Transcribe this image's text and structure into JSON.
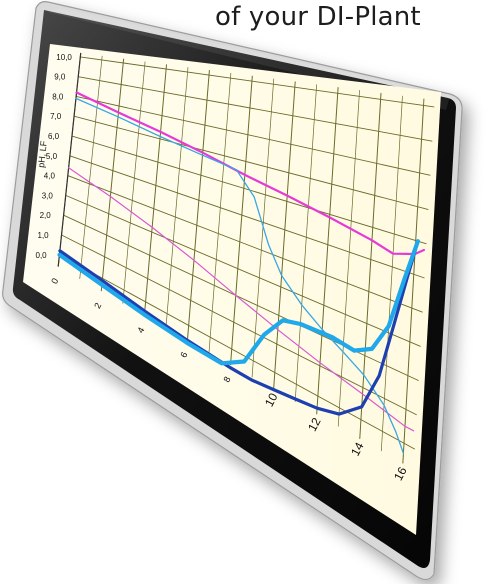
{
  "header": {
    "text": "of your DI-Plant"
  },
  "chart_data": {
    "type": "line",
    "ylabel": "pH, LF",
    "xlabel": "",
    "x_ticks": [
      "0",
      "2",
      "4",
      "6",
      "8",
      "10",
      "12",
      "14",
      "16"
    ],
    "y_ticks": [
      "0,0",
      "1,0",
      "2,0",
      "3,0",
      "4,0",
      "5,0",
      "6,0",
      "7,0",
      "8,0",
      "9,0",
      "10,0"
    ],
    "xlim": [
      0,
      16.5
    ],
    "ylim": [
      -0.6,
      10.2
    ],
    "grid": true,
    "series": [
      {
        "color": "#e63ad6",
        "points": [
          [
            0,
            8.2
          ],
          [
            2,
            7.7
          ],
          [
            4,
            7.3
          ],
          [
            6,
            6.9
          ],
          [
            8,
            6.5
          ],
          [
            10,
            6.2
          ],
          [
            12,
            5.9
          ],
          [
            14,
            5.6
          ],
          [
            15,
            5.4
          ],
          [
            16,
            5.6
          ],
          [
            16.4,
            5.8
          ]
        ]
      },
      {
        "color": "#d95ad0",
        "points": [
          [
            0,
            4.4
          ],
          [
            2,
            3.8
          ],
          [
            4,
            3.2
          ],
          [
            6,
            2.6
          ],
          [
            8,
            2.0
          ],
          [
            10,
            1.5
          ],
          [
            12,
            1.1
          ],
          [
            14,
            0.8
          ],
          [
            16,
            0.5
          ],
          [
            16.4,
            0.5
          ]
        ]
      },
      {
        "color": "#37a8e3",
        "points": [
          [
            0,
            7.9
          ],
          [
            2,
            7.5
          ],
          [
            4,
            7.1
          ],
          [
            6,
            6.8
          ],
          [
            7.6,
            6.6
          ],
          [
            8.5,
            5.8
          ],
          [
            9.3,
            4.3
          ],
          [
            10,
            3.4
          ],
          [
            11,
            2.7
          ],
          [
            12,
            2.2
          ],
          [
            13,
            1.8
          ],
          [
            14,
            1.4
          ],
          [
            15,
            0.8
          ],
          [
            15.6,
            0.2
          ],
          [
            16,
            -0.3
          ]
        ]
      },
      {
        "color": "#1e3fb0",
        "points": [
          [
            0,
            0.2
          ],
          [
            2,
            -0.1
          ],
          [
            4,
            -0.4
          ],
          [
            6,
            -0.6
          ],
          [
            8,
            -0.7
          ],
          [
            9,
            -0.7
          ],
          [
            10,
            -0.6
          ],
          [
            11,
            -0.5
          ],
          [
            12,
            -0.4
          ],
          [
            13,
            -0.2
          ],
          [
            14,
            0.4
          ],
          [
            14.7,
            1.6
          ],
          [
            15.2,
            3.2
          ],
          [
            15.7,
            4.8
          ],
          [
            16.1,
            6.0
          ]
        ]
      },
      {
        "color": "#1fa8ea",
        "points": [
          [
            0,
            0.0
          ],
          [
            2,
            -0.3
          ],
          [
            4,
            -0.55
          ],
          [
            6,
            -0.7
          ],
          [
            7.6,
            -0.72
          ],
          [
            8.6,
            -0.2
          ],
          [
            9.4,
            1.1
          ],
          [
            10.2,
            1.9
          ],
          [
            11,
            2.05
          ],
          [
            12.5,
            2.1
          ],
          [
            13.5,
            2.0
          ],
          [
            14.3,
            2.3
          ],
          [
            15,
            3.2
          ],
          [
            15.6,
            4.8
          ],
          [
            16.1,
            6.0
          ]
        ]
      }
    ]
  }
}
